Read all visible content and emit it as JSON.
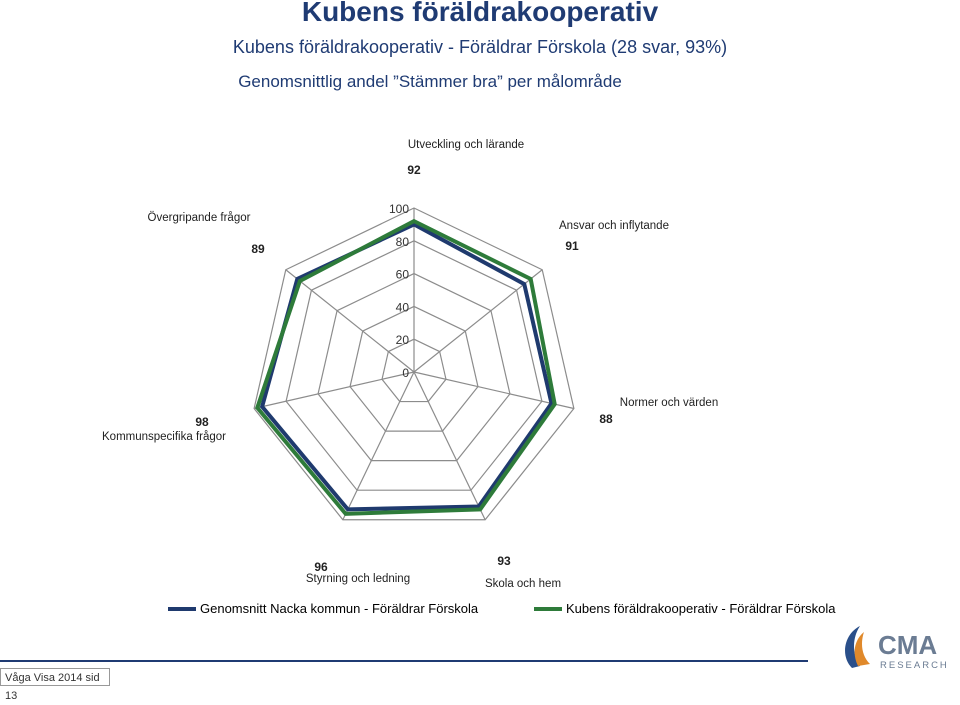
{
  "header": {
    "title": "Kubens föräldrakooperativ",
    "subtitle": "Kubens föräldrakooperativ - Föräldrar Förskola (28 svar, 93%)"
  },
  "chart_data": {
    "type": "radar",
    "title": "Genomsnittlig andel ”Stämmer bra” per målområde",
    "categories": [
      "Utveckling och lärande",
      "Ansvar och inflytande",
      "Normer och värden",
      "Skola och hem",
      "Styrning och ledning",
      "Kommunspecifika frågor",
      "Övergripande frågor"
    ],
    "rlim": [
      0,
      100
    ],
    "ticks": [
      "0",
      "20",
      "40",
      "60",
      "80",
      "100"
    ],
    "series": [
      {
        "name": "Genomsnitt Nacka kommun - Föräldrar Förskola",
        "color": "#1f3a6e",
        "values": [
          90,
          86,
          86,
          91,
          93,
          95,
          91
        ]
      },
      {
        "name": "Kubens föräldrakooperativ - Föräldrar Förskola",
        "color": "#2e7b3a",
        "values": [
          92,
          91,
          88,
          93,
          96,
          98,
          89
        ]
      }
    ],
    "data_labels": [
      "92",
      "91",
      "88",
      "93",
      "96",
      "98",
      "89"
    ]
  },
  "legend": {
    "item1": "Genomsnitt Nacka kommun - Föräldrar Förskola",
    "item2": "Kubens föräldrakooperativ - Föräldrar Förskola"
  },
  "footer": {
    "page_label": "Våga Visa 2014 sid 13"
  },
  "logo": {
    "text": "CMA",
    "subtext": "RESEARCH"
  }
}
